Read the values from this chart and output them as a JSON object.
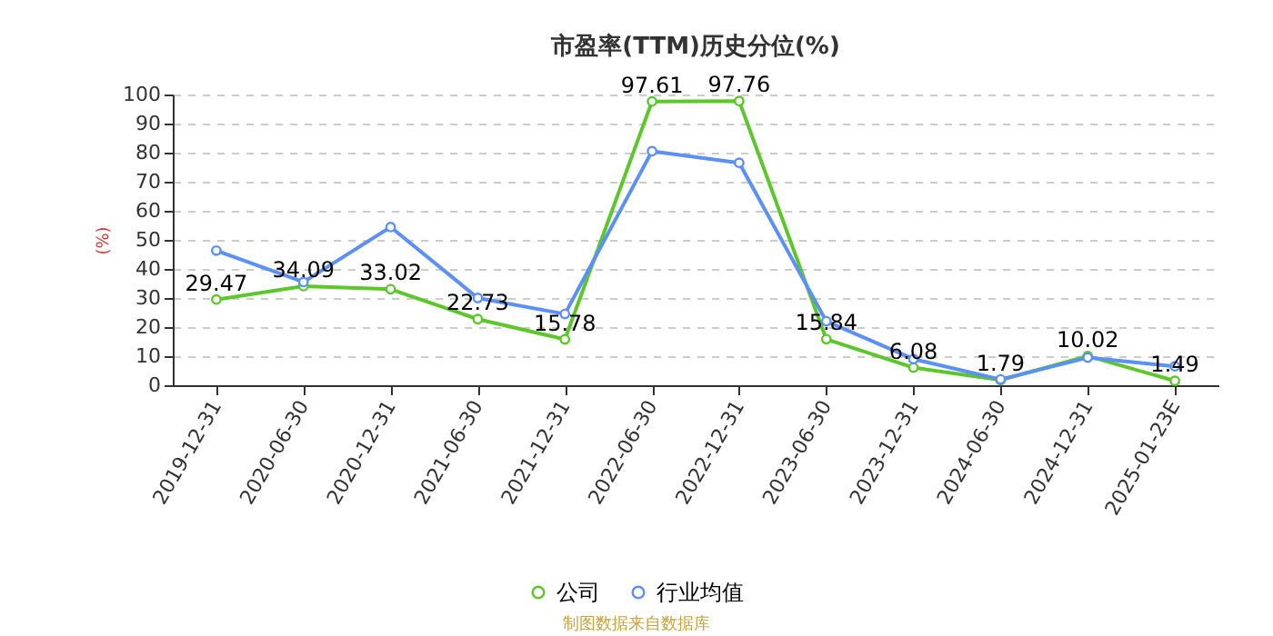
{
  "chart_data": {
    "type": "line",
    "title": "市盈率(TTM)历史分位(%)",
    "ylabel": "(%)",
    "categories": [
      "2019-12-31",
      "2020-06-30",
      "2020-12-31",
      "2021-06-30",
      "2021-12-31",
      "2022-06-30",
      "2022-12-31",
      "2023-06-30",
      "2023-12-31",
      "2024-06-30",
      "2024-12-31",
      "2025-01-23E"
    ],
    "series": [
      {
        "name": "公司",
        "color": "#5cc72a",
        "values": [
          29.47,
          34.09,
          33.02,
          22.73,
          15.78,
          97.61,
          97.76,
          15.84,
          6.08,
          1.79,
          10.02,
          1.49
        ],
        "value_labels": [
          "29.47",
          "34.09",
          "33.02",
          "22.73",
          "15.78",
          "97.61",
          "97.76",
          "15.84",
          "6.08",
          "1.79",
          "10.02",
          "1.49"
        ]
      },
      {
        "name": "行业均值",
        "color": "#5b8ff9",
        "values": [
          46.3,
          35.5,
          54.4,
          30,
          24.5,
          80.5,
          76.5,
          22,
          9,
          2,
          9.5,
          6.5
        ]
      }
    ],
    "ylim": [
      0,
      100
    ],
    "yticks": [
      0,
      10,
      20,
      30,
      40,
      50,
      60,
      70,
      80,
      90,
      100
    ],
    "grid": "y",
    "legend": "bottom",
    "marker": "circle",
    "line_style": "solid",
    "annotations": [
      "制图数据来自数据库"
    ]
  }
}
